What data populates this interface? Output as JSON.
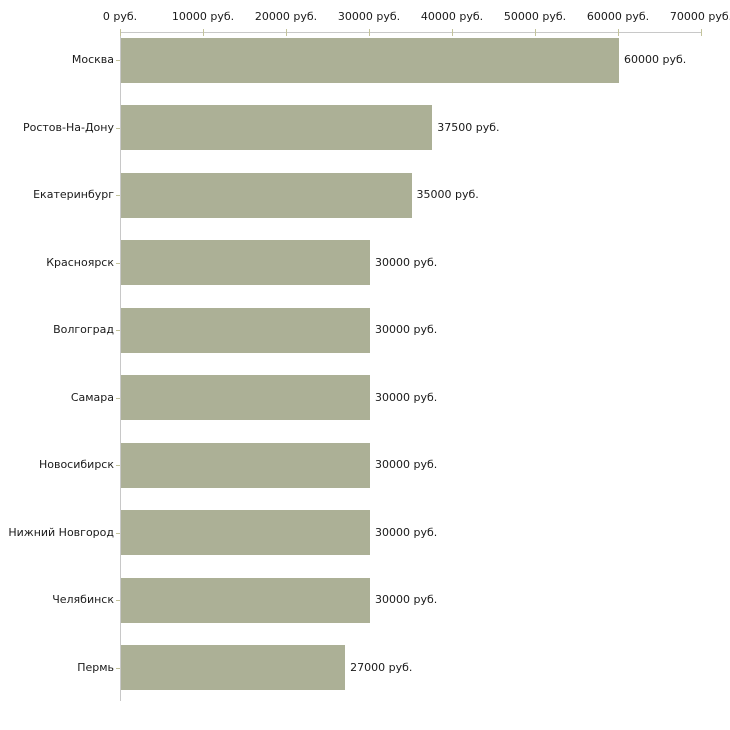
{
  "chart_data": {
    "type": "bar",
    "orientation": "horizontal",
    "categories": [
      "Москва",
      "Ростов-На-Дону",
      "Екатеринбург",
      "Красноярск",
      "Волгоград",
      "Самара",
      "Новосибирск",
      "Нижний Новгород",
      "Челябинск",
      "Пермь"
    ],
    "values": [
      60000,
      37500,
      35000,
      30000,
      30000,
      30000,
      30000,
      30000,
      30000,
      27000
    ],
    "bar_labels": [
      "60000 руб.",
      "37500 руб.",
      "35000 руб.",
      "30000 руб.",
      "30000 руб.",
      "30000 руб.",
      "30000 руб.",
      "30000 руб.",
      "30000 руб.",
      "27000 руб."
    ],
    "x_axis": {
      "position": "top",
      "min": 0,
      "max": 70000,
      "ticks": [
        0,
        10000,
        20000,
        30000,
        40000,
        50000,
        60000,
        70000
      ],
      "tick_labels": [
        "0 руб.",
        "10000 руб.",
        "20000 руб.",
        "30000 руб.",
        "40000 руб.",
        "50000 руб.",
        "60000 руб.",
        "70000 руб."
      ],
      "unit": "руб."
    },
    "grid": false,
    "legend": "none",
    "colors": {
      "bar": "#acb096",
      "axis_line": "#c8c8c8",
      "tick": "#c3c39b",
      "text": "#1a1a1a",
      "background": "#ffffff"
    }
  }
}
